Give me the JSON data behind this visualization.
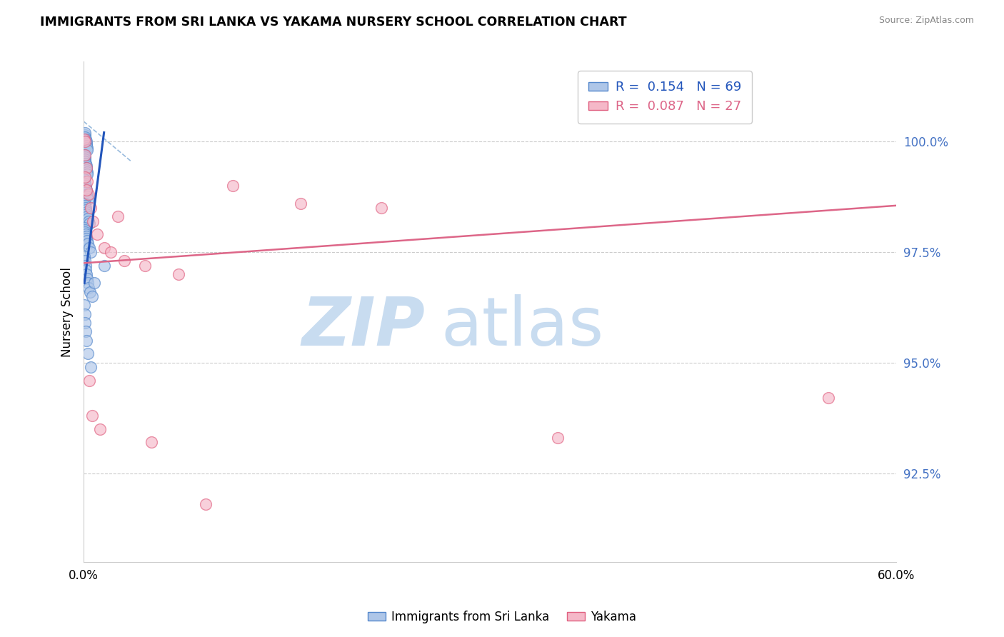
{
  "title": "IMMIGRANTS FROM SRI LANKA VS YAKAMA NURSERY SCHOOL CORRELATION CHART",
  "source": "Source: ZipAtlas.com",
  "ylabel": "Nursery School",
  "xlim": [
    0.0,
    60.0
  ],
  "ylim": [
    90.5,
    101.8
  ],
  "yticks": [
    92.5,
    95.0,
    97.5,
    100.0
  ],
  "ytick_labels": [
    "92.5%",
    "95.0%",
    "97.5%",
    "100.0%"
  ],
  "blue_R": "0.154",
  "blue_N": "69",
  "pink_R": "0.087",
  "pink_N": "27",
  "blue_color": "#AEC6E8",
  "pink_color": "#F5B8C8",
  "blue_edge_color": "#5588CC",
  "pink_edge_color": "#E06080",
  "blue_line_color": "#2255BB",
  "pink_line_color": "#DD6688",
  "dashed_line_color": "#99BBDD",
  "blue_scatter_x": [
    0.05,
    0.08,
    0.1,
    0.12,
    0.15,
    0.18,
    0.2,
    0.22,
    0.25,
    0.28,
    0.05,
    0.08,
    0.1,
    0.12,
    0.15,
    0.18,
    0.2,
    0.22,
    0.25,
    0.28,
    0.06,
    0.09,
    0.11,
    0.14,
    0.17,
    0.19,
    0.21,
    0.24,
    0.27,
    0.3,
    0.07,
    0.1,
    0.13,
    0.16,
    0.19,
    0.22,
    0.26,
    0.3,
    0.35,
    0.4,
    0.05,
    0.08,
    0.11,
    0.14,
    0.18,
    0.22,
    0.27,
    0.33,
    0.4,
    0.5,
    0.06,
    0.09,
    0.13,
    0.17,
    0.21,
    0.25,
    0.3,
    0.38,
    0.48,
    0.6,
    0.05,
    0.07,
    0.1,
    0.15,
    0.2,
    0.3,
    0.5,
    0.8,
    1.5
  ],
  "blue_scatter_y": [
    100.1,
    100.15,
    100.2,
    100.1,
    100.05,
    100.0,
    99.95,
    99.9,
    99.85,
    99.8,
    99.7,
    99.65,
    99.6,
    99.55,
    99.5,
    99.45,
    99.4,
    99.35,
    99.3,
    99.25,
    99.15,
    99.1,
    99.05,
    99.0,
    98.95,
    98.9,
    98.85,
    98.8,
    98.75,
    98.7,
    98.6,
    98.55,
    98.5,
    98.45,
    98.4,
    98.35,
    98.3,
    98.25,
    98.2,
    98.15,
    98.05,
    98.0,
    97.95,
    97.9,
    97.85,
    97.8,
    97.75,
    97.7,
    97.6,
    97.5,
    97.4,
    97.3,
    97.2,
    97.1,
    97.0,
    96.9,
    96.8,
    96.7,
    96.6,
    96.5,
    96.3,
    96.1,
    95.9,
    95.7,
    95.5,
    95.2,
    94.9,
    96.8,
    97.2
  ],
  "pink_scatter_x": [
    0.05,
    0.08,
    0.12,
    0.18,
    0.25,
    0.35,
    0.5,
    0.7,
    1.0,
    1.5,
    2.0,
    3.0,
    4.5,
    7.0,
    11.0,
    16.0,
    22.0,
    35.0,
    55.0,
    0.1,
    0.2,
    0.4,
    0.6,
    1.2,
    2.5,
    5.0,
    9.0
  ],
  "pink_scatter_y": [
    100.05,
    100.0,
    99.7,
    99.4,
    99.1,
    98.8,
    98.5,
    98.2,
    97.9,
    97.6,
    97.5,
    97.3,
    97.2,
    97.0,
    99.0,
    98.6,
    98.5,
    93.3,
    94.2,
    99.2,
    98.9,
    94.6,
    93.8,
    93.5,
    98.3,
    93.2,
    91.8
  ],
  "pink_line_x0": 0.0,
  "pink_line_y0": 97.25,
  "pink_line_x1": 60.0,
  "pink_line_y1": 98.55,
  "blue_line_x0": 0.05,
  "blue_line_y0": 96.8,
  "blue_line_x1": 1.5,
  "blue_line_y1": 100.2,
  "dashed_line_x0": 0.0,
  "dashed_line_y0": 100.45,
  "dashed_line_x1": 3.5,
  "dashed_line_y1": 99.55
}
